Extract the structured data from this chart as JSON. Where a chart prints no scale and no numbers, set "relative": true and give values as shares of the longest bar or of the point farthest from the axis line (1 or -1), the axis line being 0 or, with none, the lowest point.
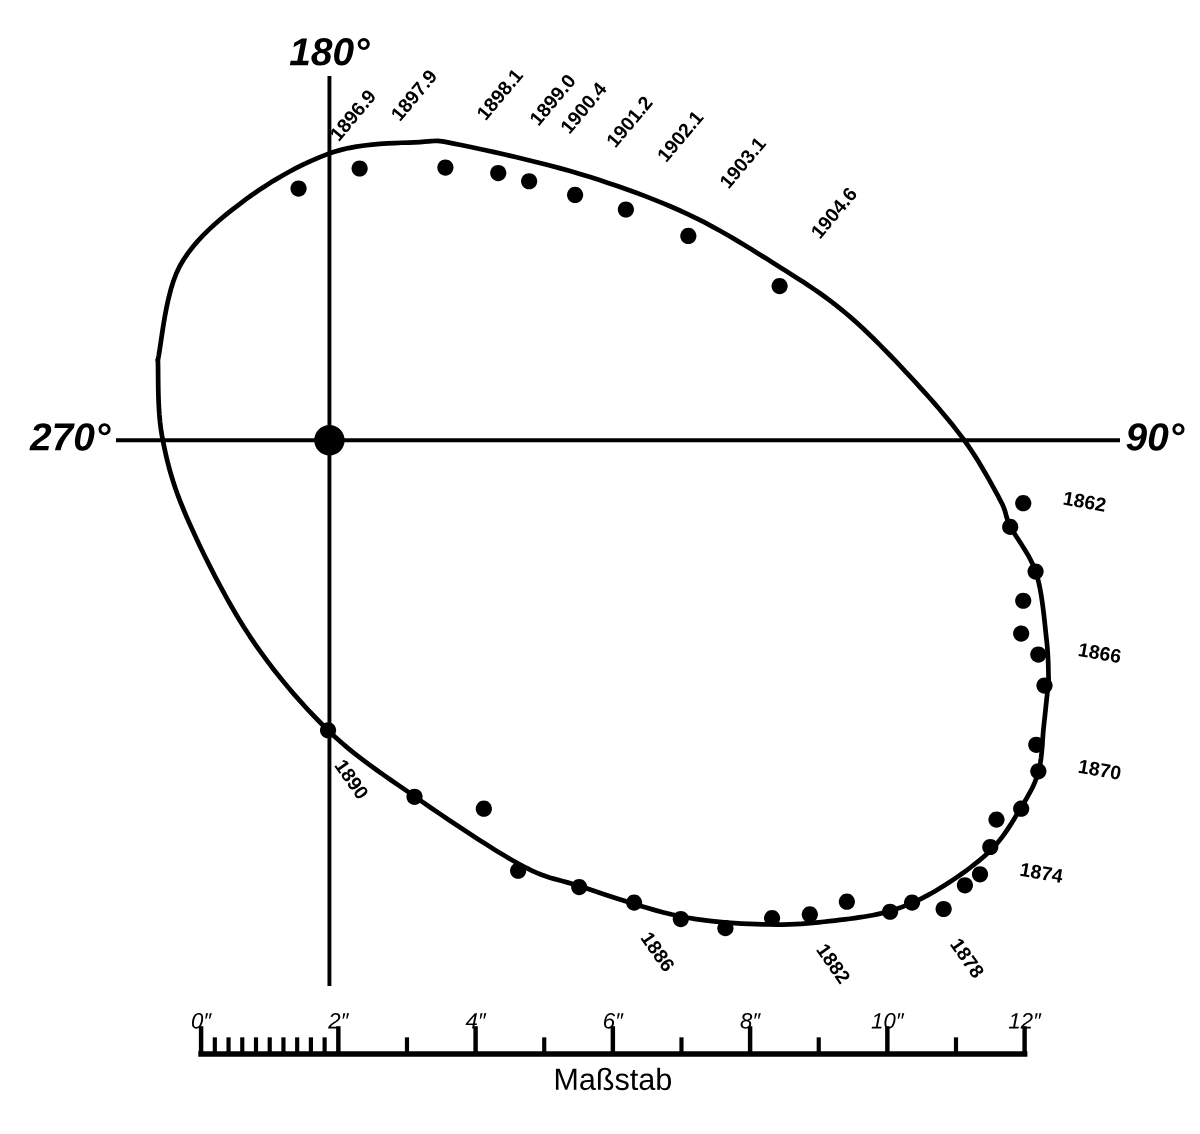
{
  "chart_data": {
    "type": "scatter",
    "xlabel": "Maßstab",
    "relative": true,
    "xlim": [
      -1.24,
      13.39
    ],
    "xticks": [
      {
        "value": 0,
        "label": "0″"
      },
      {
        "value": 0.2,
        "label": null
      },
      {
        "value": 0.4,
        "label": null
      },
      {
        "value": 0.6,
        "label": null
      },
      {
        "value": 0.8,
        "label": null
      },
      {
        "value": 1,
        "label": null
      },
      {
        "value": 1.2,
        "label": null
      },
      {
        "value": 1.4,
        "label": null
      },
      {
        "value": 1.6,
        "label": null
      },
      {
        "value": 1.8,
        "label": null
      },
      {
        "value": 2,
        "label": "2″"
      },
      {
        "value": 3,
        "label": null
      },
      {
        "value": 4,
        "label": "4″"
      },
      {
        "value": 5,
        "label": null
      },
      {
        "value": 6,
        "label": "6″"
      },
      {
        "value": 7,
        "label": null
      },
      {
        "value": 8,
        "label": "8″"
      },
      {
        "value": 9,
        "label": null
      },
      {
        "value": 10,
        "label": "10″"
      },
      {
        "value": 11,
        "label": null
      },
      {
        "value": 12,
        "label": "12″"
      }
    ],
    "tick_labels": "x",
    "marker": "circle",
    "series": [
      {
        "type": "line",
        "marker": "none",
        "color": "#000000",
        "x": [
          -0.63,
          -0.31,
          0.65,
          1.93,
          3.19,
          3.77,
          5.52,
          7.09,
          8.43,
          9.4,
          10.33,
          11.12,
          11.64,
          11.79,
          12.17,
          12.32,
          12.35
        ],
        "values": [
          0.761,
          0.864,
          0.937,
          0.989,
          1,
          0.997,
          0.965,
          0.921,
          0.863,
          0.812,
          0.743,
          0.673,
          0.608,
          0.579,
          0.527,
          0.454,
          0.41
        ]
      },
      {
        "type": "line",
        "marker": "none",
        "color": "#000000",
        "x": [
          12.35,
          12.28,
          12.2,
          11.93,
          11.5,
          10.77,
          10.09,
          9.31,
          8.29,
          6.98,
          5.52,
          4.64,
          3.1,
          1.85,
          0.71,
          -0.2,
          -0.57,
          -0.63
        ],
        "values": [
          0.41,
          0.36,
          0.309,
          0.268,
          0.223,
          0.182,
          0.158,
          0.147,
          0.142,
          0.151,
          0.184,
          0.208,
          0.283,
          0.355,
          0.458,
          0.587,
          0.678,
          0.761
        ]
      },
      {
        "color": "#000000",
        "x": [
          11.98,
          11.79,
          12.16,
          11.98,
          11.95,
          12.2,
          12.29,
          12.17,
          12.2,
          11.95,
          11.59,
          11.5,
          11.35,
          11.13,
          10.82,
          10.36,
          10.04,
          9.41,
          8.87,
          8.32,
          7.64,
          6.99,
          6.31,
          5.51,
          4.62,
          4.12,
          3.11,
          1.85,
          1.42,
          2.31,
          3.56,
          4.33,
          4.78,
          5.45,
          6.19,
          7.1,
          8.43
        ],
        "values": [
          0.604,
          0.578,
          0.529,
          0.497,
          0.461,
          0.438,
          0.404,
          0.339,
          0.31,
          0.269,
          0.257,
          0.227,
          0.197,
          0.185,
          0.159,
          0.166,
          0.156,
          0.167,
          0.153,
          0.149,
          0.138,
          0.148,
          0.166,
          0.183,
          0.201,
          0.269,
          0.282,
          0.355,
          0.949,
          0.971,
          0.972,
          0.966,
          0.957,
          0.942,
          0.926,
          0.897,
          0.842
        ]
      },
      {
        "color": "#000000",
        "x": [
          1.87
        ],
        "values": [
          0.673
        ]
      }
    ],
    "ref_lines": [
      {
        "axis": "x",
        "value": 1.87
      },
      {
        "axis": "y",
        "value": 0.673
      }
    ],
    "annotations": [
      "180°",
      "270°",
      "90°",
      {
        "text": "1896.9",
        "x": 1.42,
        "y": 0.949
      },
      {
        "text": "1897.9",
        "x": 2.31,
        "y": 0.971
      },
      {
        "text": "1898.1",
        "x": 3.56,
        "y": 0.972
      },
      {
        "text": "1899.0",
        "x": 4.33,
        "y": 0.966
      },
      {
        "text": "1900.4",
        "x": 4.78,
        "y": 0.957
      },
      {
        "text": "1901.2",
        "x": 5.45,
        "y": 0.942
      },
      {
        "text": "1902.1",
        "x": 6.19,
        "y": 0.926
      },
      {
        "text": "1903.1",
        "x": 7.1,
        "y": 0.897
      },
      {
        "text": "1904.6",
        "x": 8.43,
        "y": 0.842
      },
      {
        "text": "1862",
        "x": 11.98,
        "y": 0.604
      },
      {
        "text": "1866",
        "x": 12.2,
        "y": 0.438
      },
      {
        "text": "1870",
        "x": 12.2,
        "y": 0.31
      },
      {
        "text": "1874",
        "x": 11.35,
        "y": 0.197
      },
      {
        "text": "1878",
        "x": 10.82,
        "y": 0.159
      },
      {
        "text": "1882",
        "x": 8.87,
        "y": 0.153
      },
      {
        "text": "1886",
        "x": 6.31,
        "y": 0.166
      },
      {
        "text": "1890",
        "x": 1.85,
        "y": 0.355
      }
    ]
  }
}
